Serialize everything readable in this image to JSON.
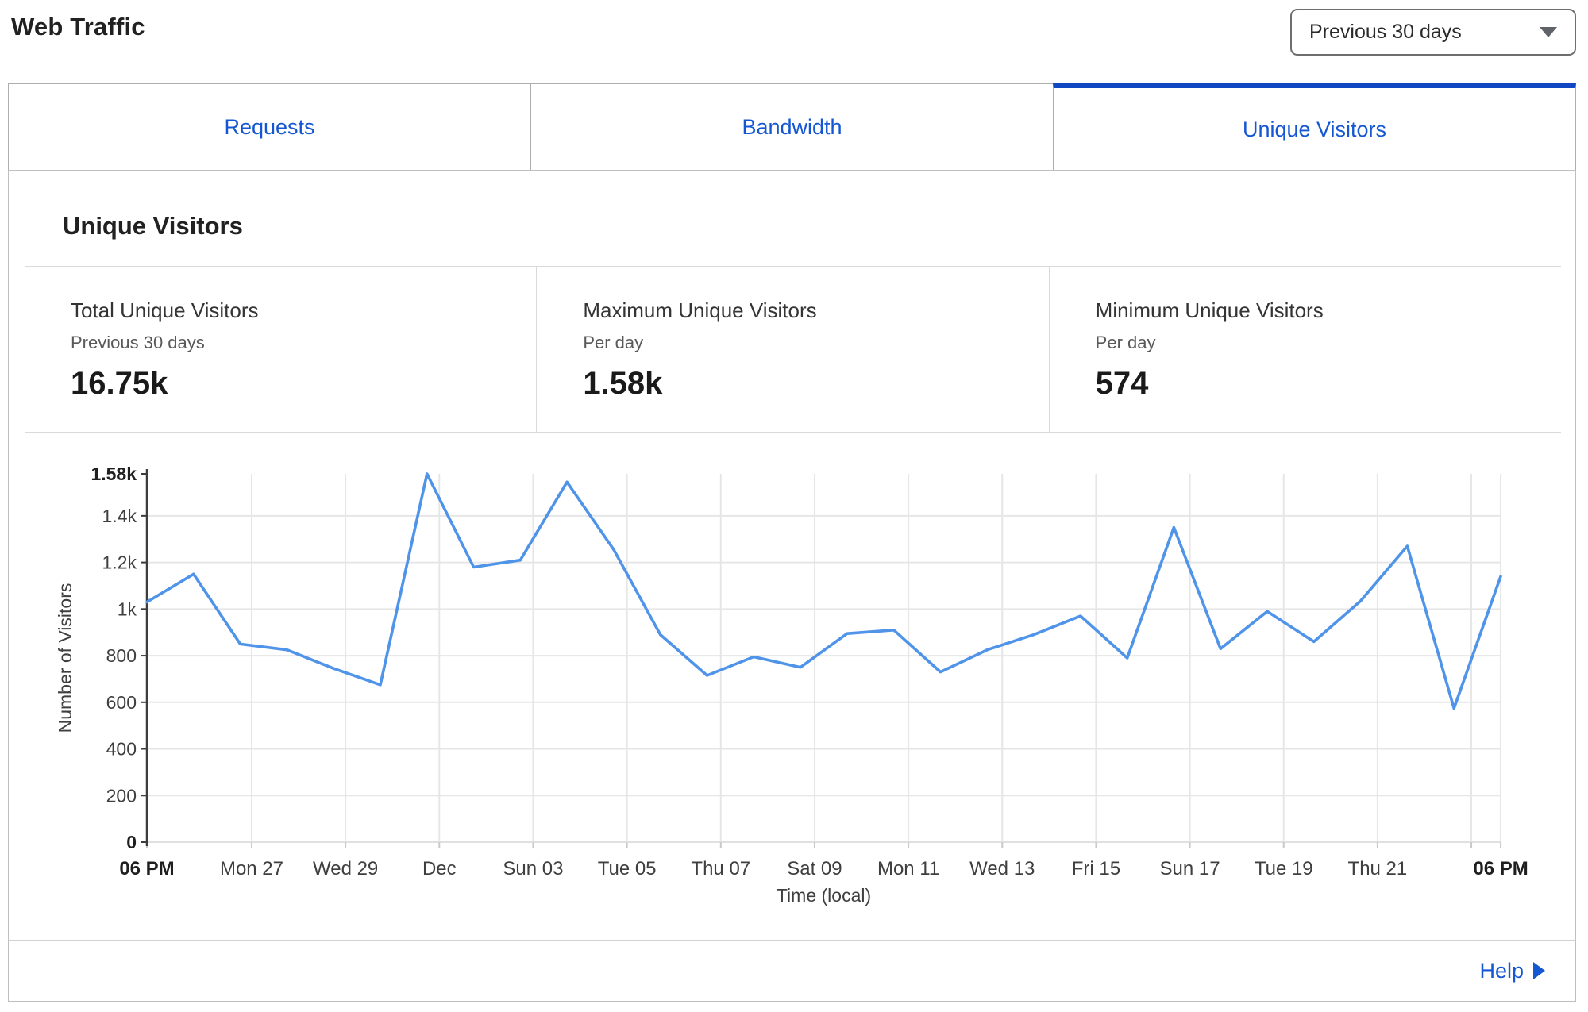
{
  "header": {
    "title": "Web Traffic",
    "range_selector": {
      "value": "Previous 30 days"
    }
  },
  "tabs": [
    {
      "label": "Requests",
      "active": false
    },
    {
      "label": "Bandwidth",
      "active": false
    },
    {
      "label": "Unique Visitors",
      "active": true
    }
  ],
  "section": {
    "heading": "Unique Visitors"
  },
  "stats": [
    {
      "label": "Total Unique Visitors",
      "sublabel": "Previous 30 days",
      "value": "16.75k"
    },
    {
      "label": "Maximum Unique Visitors",
      "sublabel": "Per day",
      "value": "1.58k"
    },
    {
      "label": "Minimum Unique Visitors",
      "sublabel": "Per day",
      "value": "574"
    }
  ],
  "footer": {
    "help_label": "Help"
  },
  "colors": {
    "link-blue": "#1556d2",
    "active-tab-blue": "#1247c4",
    "line-blue": "#4f94e8",
    "grid": "#e6e6e6",
    "axis-dark": "#3d3d3d"
  },
  "chart_data": {
    "type": "line",
    "title": "",
    "xlabel": "Time (local)",
    "ylabel": "Number of Visitors",
    "legend": "none",
    "grid": true,
    "x_unit": "1 point per day, starting Fri 24 at 6 PM local",
    "ylim": [
      0,
      1580
    ],
    "xlim_days": [
      0,
      28.86
    ],
    "values": [
      1030,
      1150,
      850,
      825,
      745,
      675,
      1580,
      1180,
      1210,
      1545,
      1255,
      890,
      715,
      795,
      750,
      895,
      910,
      730,
      825,
      890,
      970,
      790,
      1350,
      830,
      990,
      860,
      1035,
      1270,
      574,
      1140
    ],
    "y_ticks": [
      {
        "v": 0,
        "label": "0",
        "bold": true
      },
      {
        "v": 200,
        "label": "200",
        "bold": false
      },
      {
        "v": 400,
        "label": "400",
        "bold": false
      },
      {
        "v": 600,
        "label": "600",
        "bold": false
      },
      {
        "v": 800,
        "label": "800",
        "bold": false
      },
      {
        "v": 1000,
        "label": "1k",
        "bold": false
      },
      {
        "v": 1200,
        "label": "1.2k",
        "bold": false
      },
      {
        "v": 1400,
        "label": "1.4k",
        "bold": false
      },
      {
        "v": 1580,
        "label": "1.58k",
        "bold": true
      }
    ],
    "x_ticks": [
      {
        "t": 0,
        "label": "06 PM",
        "bold": true
      },
      {
        "t": 2.234,
        "label": "Mon 27",
        "bold": false
      },
      {
        "t": 4.234,
        "label": "Wed 29",
        "bold": false
      },
      {
        "t": 6.234,
        "label": "Dec",
        "bold": false
      },
      {
        "t": 8.234,
        "label": "Sun 03",
        "bold": false
      },
      {
        "t": 10.234,
        "label": "Tue 05",
        "bold": false
      },
      {
        "t": 12.234,
        "label": "Thu 07",
        "bold": false
      },
      {
        "t": 14.234,
        "label": "Sat 09",
        "bold": false
      },
      {
        "t": 16.234,
        "label": "Mon 11",
        "bold": false
      },
      {
        "t": 18.234,
        "label": "Wed 13",
        "bold": false
      },
      {
        "t": 20.234,
        "label": "Fri 15",
        "bold": false
      },
      {
        "t": 22.234,
        "label": "Sun 17",
        "bold": false
      },
      {
        "t": 24.234,
        "label": "Tue 19",
        "bold": false
      },
      {
        "t": 26.234,
        "label": "Thu 21",
        "bold": false
      },
      {
        "t": 28.234,
        "label": "",
        "bold": false
      },
      {
        "t": 28.86,
        "label": "06 PM",
        "bold": true
      }
    ]
  }
}
